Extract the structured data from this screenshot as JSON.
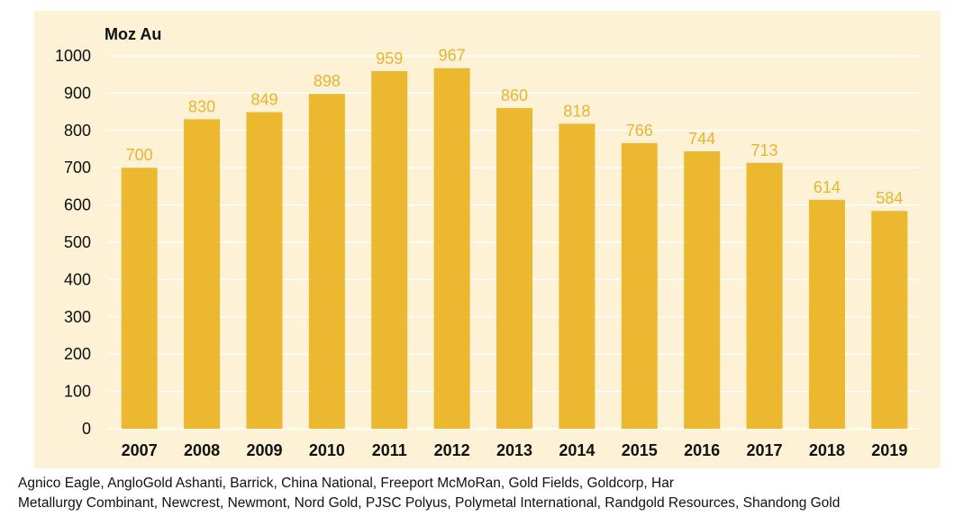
{
  "chart_data": {
    "type": "bar",
    "ylabel": "Moz Au",
    "ylim": [
      0,
      1000
    ],
    "yticks": [
      "0",
      "100",
      "200",
      "300",
      "400",
      "500",
      "600",
      "700",
      "800",
      "900",
      "1000"
    ],
    "categories": [
      "2007",
      "2008",
      "2009",
      "2010",
      "2011",
      "2012",
      "2013",
      "2014",
      "2015",
      "2016",
      "2017",
      "2018",
      "2019"
    ],
    "values": [
      700,
      830,
      849,
      898,
      959,
      967,
      860,
      818,
      766,
      744,
      713,
      614,
      584
    ],
    "data_labels": [
      "700",
      "830",
      "849",
      "898",
      "959",
      "967",
      "860",
      "818",
      "766",
      "744",
      "713",
      "614",
      "584"
    ],
    "grid": true,
    "colors": {
      "bar": "#ecb82f",
      "panel": "#fdf1d6",
      "data_label": "#e8b430",
      "grid": "#ffffff"
    }
  },
  "footnote": {
    "line1": "Agnico Eagle, AngloGold Ashanti, Barrick, China National, Freeport McMoRan, Gold Fields, Goldcorp, Har",
    "line2": "Metallurgy Combinant, Newcrest, Newmont, Nord Gold, PJSC Polyus, Polymetal International, Randgold Resources, Shandong Gold"
  }
}
